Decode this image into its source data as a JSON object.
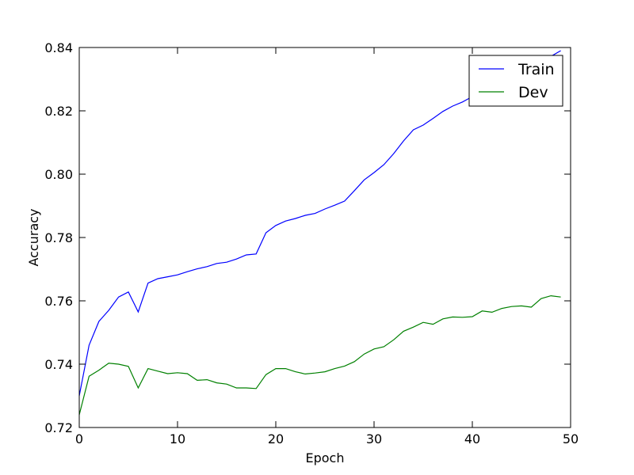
{
  "chart_data": {
    "type": "line",
    "xlabel": "Epoch",
    "ylabel": "Accuracy",
    "xlim": [
      0,
      50
    ],
    "ylim": [
      0.72,
      0.84
    ],
    "xticks": [
      0,
      10,
      20,
      30,
      40,
      50
    ],
    "yticks": [
      0.72,
      0.74,
      0.76,
      0.78,
      0.8,
      0.82,
      0.84
    ],
    "xtick_labels": [
      "0",
      "10",
      "20",
      "30",
      "40",
      "50"
    ],
    "ytick_labels": [
      "0.72",
      "0.74",
      "0.76",
      "0.78",
      "0.80",
      "0.82",
      "0.84"
    ],
    "grid": false,
    "legend_position": "top-right",
    "x": [
      0,
      1,
      2,
      3,
      4,
      5,
      6,
      7,
      8,
      9,
      10,
      11,
      12,
      13,
      14,
      15,
      16,
      17,
      18,
      19,
      20,
      21,
      22,
      23,
      24,
      25,
      26,
      27,
      28,
      29,
      30,
      31,
      32,
      33,
      34,
      35,
      36,
      37,
      38,
      39,
      40,
      41,
      42,
      43,
      44,
      45,
      46,
      47,
      48,
      49
    ],
    "series": [
      {
        "name": "Train",
        "color": "#0000ff",
        "values": [
          0.73,
          0.746,
          0.7535,
          0.757,
          0.7612,
          0.7628,
          0.7565,
          0.7656,
          0.767,
          0.7676,
          0.7682,
          0.7692,
          0.7701,
          0.7708,
          0.7718,
          0.7722,
          0.7732,
          0.7745,
          0.7748,
          0.7815,
          0.7838,
          0.7852,
          0.786,
          0.787,
          0.7876,
          0.789,
          0.7902,
          0.7915,
          0.7948,
          0.7982,
          0.8005,
          0.803,
          0.8065,
          0.8105,
          0.814,
          0.8155,
          0.8176,
          0.8198,
          0.8215,
          0.8228,
          0.8245,
          0.826,
          0.8275,
          0.829,
          0.8305,
          0.832,
          0.8338,
          0.836,
          0.8372,
          0.839
        ]
      },
      {
        "name": "Dev",
        "color": "#008000",
        "values": [
          0.724,
          0.7362,
          0.7381,
          0.7403,
          0.74,
          0.7393,
          0.7325,
          0.7386,
          0.7378,
          0.737,
          0.7373,
          0.737,
          0.7349,
          0.7351,
          0.7341,
          0.7337,
          0.7325,
          0.7325,
          0.7323,
          0.7367,
          0.7386,
          0.7386,
          0.7376,
          0.7369,
          0.7372,
          0.7376,
          0.7386,
          0.7394,
          0.7408,
          0.7432,
          0.7448,
          0.7455,
          0.7477,
          0.7504,
          0.7517,
          0.7532,
          0.7526,
          0.7543,
          0.7549,
          0.7548,
          0.755,
          0.7568,
          0.7564,
          0.7576,
          0.7582,
          0.7584,
          0.758,
          0.7607,
          0.7616,
          0.7612
        ]
      }
    ]
  }
}
